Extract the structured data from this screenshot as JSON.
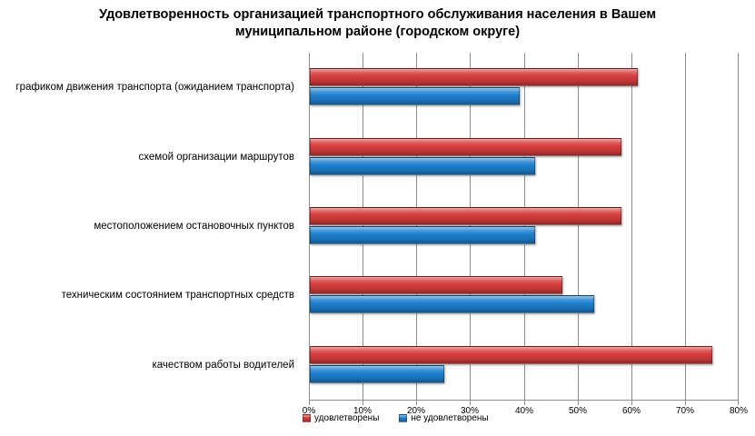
{
  "title": {
    "lines": [
      "Удовлетворенность организацией транспортного обслуживания населения в Вашем",
      "муниципальном районе (городском округе)"
    ]
  },
  "colors": {
    "satisfied_bar": "#d63c3c",
    "unsatisfied_bar": "#1e80ce",
    "gridline": "#8c8c8c",
    "text": "#000000",
    "background": "#ffffff"
  },
  "chart_data": {
    "type": "bar",
    "orientation": "horizontal",
    "title": "Удовлетворенность организацией транспортного обслуживания населения в Вашем муниципальном районе (городском округе)",
    "categories": [
      "графиком движения транспорта (ожиданием транспорта)",
      "схемой организации маршрутов",
      "местоположением остановочных пунктов",
      "техническим состоянием транспортных средств",
      "качеством работы водителей"
    ],
    "series": [
      {
        "name": "удовлетворены",
        "key": "satisfied",
        "color": "#d63c3c",
        "values": [
          61,
          58,
          58,
          47,
          75
        ]
      },
      {
        "name": "не удовлетворены",
        "key": "unsatisfied",
        "color": "#1e80ce",
        "values": [
          39,
          42,
          42,
          53,
          25
        ]
      }
    ],
    "x_axis": {
      "min": 0,
      "max": 80,
      "step": 10,
      "tick_labels": [
        "0%",
        "10%",
        "20%",
        "30%",
        "40%",
        "50%",
        "60%",
        "70%",
        "80%"
      ],
      "format": "percent"
    },
    "grid": true,
    "legend_position": "bottom-left",
    "bar_order_top_to_bottom": [
      "удовлетворены",
      "не удовлетворены"
    ]
  }
}
